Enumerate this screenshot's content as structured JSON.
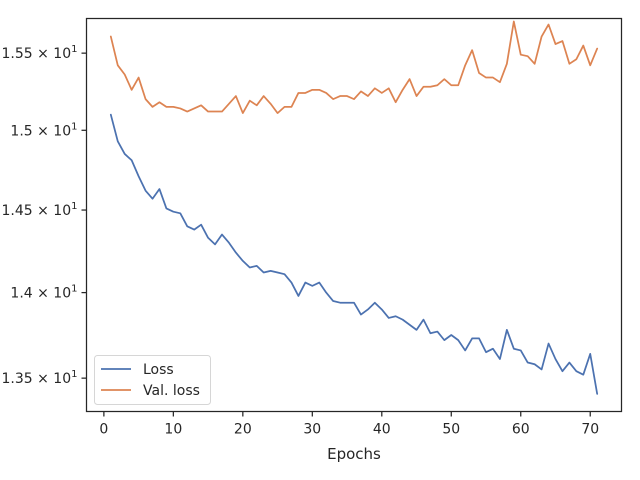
{
  "chart_data": {
    "type": "line",
    "xlabel": "Epochs",
    "ylabel": "",
    "title": "",
    "xlim": [
      -2.5,
      74.5
    ],
    "ylim": [
      13.31,
      15.73
    ],
    "y_scale": "log",
    "grid": false,
    "legend_position": "lower-left",
    "x_ticks": [
      0,
      10,
      20,
      30,
      40,
      50,
      60,
      70
    ],
    "y_ticks": [
      {
        "value": 13.5,
        "label_base": "1.35",
        "label_mult": "×",
        "label_pow": "10",
        "label_exp": "1"
      },
      {
        "value": 14.0,
        "label_base": "1.4",
        "label_mult": "×",
        "label_pow": "10",
        "label_exp": "1"
      },
      {
        "value": 14.5,
        "label_base": "1.45",
        "label_mult": "×",
        "label_pow": "10",
        "label_exp": "1"
      },
      {
        "value": 15.0,
        "label_base": "1.5",
        "label_mult": "×",
        "label_pow": "10",
        "label_exp": "1"
      },
      {
        "value": 15.5,
        "label_base": "1.55",
        "label_mult": "×",
        "label_pow": "10",
        "label_exp": "1"
      }
    ],
    "x": [
      1,
      2,
      3,
      4,
      5,
      6,
      7,
      8,
      9,
      10,
      11,
      12,
      13,
      14,
      15,
      16,
      17,
      18,
      19,
      20,
      21,
      22,
      23,
      24,
      25,
      26,
      27,
      28,
      29,
      30,
      31,
      32,
      33,
      34,
      35,
      36,
      37,
      38,
      39,
      40,
      41,
      42,
      43,
      44,
      45,
      46,
      47,
      48,
      49,
      50,
      51,
      52,
      53,
      54,
      55,
      56,
      57,
      58,
      59,
      60,
      61,
      62,
      63,
      64,
      65,
      66,
      67,
      68,
      69,
      70,
      71
    ],
    "series": [
      {
        "name": "Loss",
        "color": "#4c72b0",
        "values": [
          15.1,
          14.93,
          14.85,
          14.81,
          14.71,
          14.62,
          14.57,
          14.63,
          14.51,
          14.49,
          14.48,
          14.4,
          14.38,
          14.41,
          14.33,
          14.29,
          14.35,
          14.3,
          14.24,
          14.19,
          14.15,
          14.16,
          14.12,
          14.13,
          14.12,
          14.11,
          14.06,
          13.98,
          14.06,
          14.04,
          14.06,
          14.0,
          13.95,
          13.94,
          13.94,
          13.94,
          13.87,
          13.9,
          13.94,
          13.9,
          13.85,
          13.86,
          13.84,
          13.81,
          13.78,
          13.84,
          13.76,
          13.77,
          13.72,
          13.75,
          13.72,
          13.66,
          13.73,
          13.73,
          13.65,
          13.67,
          13.61,
          13.78,
          13.67,
          13.66,
          13.59,
          13.58,
          13.55,
          13.7,
          13.61,
          13.54,
          13.59,
          13.54,
          13.52,
          13.64,
          13.41
        ]
      },
      {
        "name": "Val. loss",
        "color": "#dd8452",
        "values": [
          15.61,
          15.42,
          15.36,
          15.26,
          15.34,
          15.2,
          15.15,
          15.18,
          15.15,
          15.15,
          15.14,
          15.12,
          15.14,
          15.16,
          15.12,
          15.12,
          15.12,
          15.17,
          15.22,
          15.11,
          15.19,
          15.16,
          15.22,
          15.17,
          15.11,
          15.15,
          15.15,
          15.24,
          15.24,
          15.26,
          15.26,
          15.24,
          15.2,
          15.22,
          15.22,
          15.2,
          15.25,
          15.22,
          15.27,
          15.24,
          15.27,
          15.18,
          15.26,
          15.33,
          15.22,
          15.28,
          15.28,
          15.29,
          15.33,
          15.29,
          15.29,
          15.42,
          15.52,
          15.37,
          15.34,
          15.34,
          15.31,
          15.43,
          15.71,
          15.49,
          15.48,
          15.43,
          15.61,
          15.69,
          15.56,
          15.58,
          15.43,
          15.46,
          15.55,
          15.42,
          15.53
        ]
      }
    ]
  }
}
